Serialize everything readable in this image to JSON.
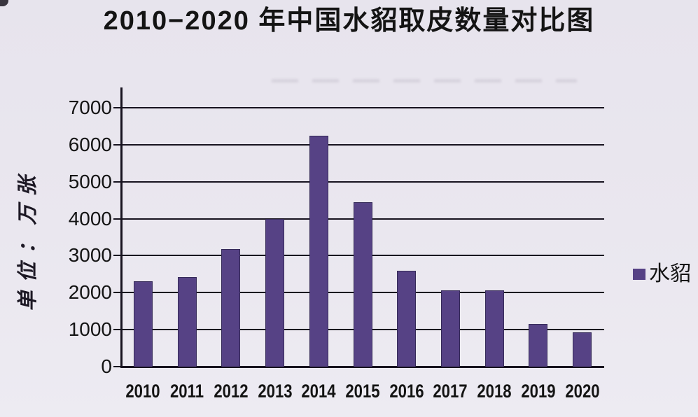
{
  "page": {
    "background": "#e9e6ee"
  },
  "chart_data": {
    "type": "bar",
    "title": "2010−2020 年中国水貂取皮数量对比图",
    "ylabel": "单位：万张",
    "xlabel": "",
    "categories": [
      "2010",
      "2011",
      "2012",
      "2013",
      "2014",
      "2015",
      "2016",
      "2017",
      "2018",
      "2019",
      "2020"
    ],
    "series": [
      {
        "name": "水貂",
        "values": [
          2300,
          2430,
          3170,
          4000,
          6250,
          4440,
          2600,
          2070,
          2060,
          1160,
          930
        ]
      }
    ],
    "ylim": [
      0,
      7000
    ],
    "yticks": [
      0,
      1000,
      2000,
      3000,
      4000,
      5000,
      6000,
      7000
    ],
    "grid": "horizontal",
    "legend_position": "right",
    "colors": {
      "bar": "#564285",
      "bar_border": "#352a58",
      "axis": "#17131f",
      "text": "#141414"
    }
  }
}
